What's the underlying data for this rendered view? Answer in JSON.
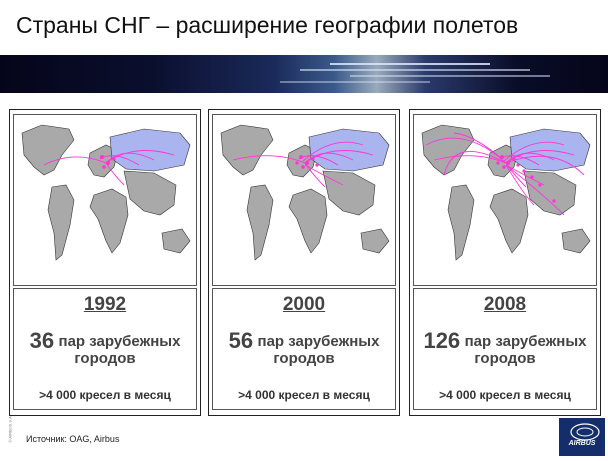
{
  "title": "Страны СНГ – расширение географии полетов",
  "panels": [
    {
      "year": "1992",
      "pairs_number": "36",
      "pairs_text_1": "пар зарубежных",
      "pairs_text_2": "городов",
      "seats": ">4 000 кресел в месяц"
    },
    {
      "year": "2000",
      "pairs_number": "56",
      "pairs_text_1": "пар зарубежных",
      "pairs_text_2": "городов",
      "seats": ">4 000 кресел в месяц"
    },
    {
      "year": "2008",
      "pairs_number": "126",
      "pairs_text_1": "пар зарубежных",
      "pairs_text_2": "городов",
      "seats": ">4 000 кресел в месяц"
    }
  ],
  "source": "Источник: OAG, Airbus",
  "logo": {
    "text": "AIRBUS"
  },
  "colors": {
    "cis_region": "#aab4ee",
    "land": "#a9a9a9",
    "routes": "#ff33dd",
    "banner": "#0b0f2e",
    "logo": "#142d6b"
  }
}
